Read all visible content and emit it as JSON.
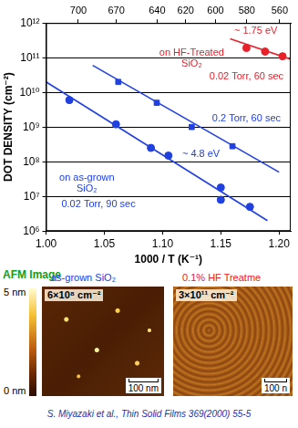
{
  "chart_data": {
    "type": "scatter",
    "x_label": "1000 / T (K⁻¹)",
    "y_label": "DOT DENSITY (cm⁻²)",
    "xlim": [
      1.0,
      1.21
    ],
    "xticks": [
      {
        "value": 1.0,
        "label": "1.00"
      },
      {
        "value": 1.05,
        "label": "1.05"
      },
      {
        "value": 1.1,
        "label": "1.10"
      },
      {
        "value": 1.15,
        "label": "1.15"
      },
      {
        "value": 1.2,
        "label": "1.20"
      }
    ],
    "x2lim": [
      1.0,
      1.21
    ],
    "x2ticks": [
      {
        "value": 1.0277,
        "label": "700"
      },
      {
        "value": 1.0603,
        "label": "670"
      },
      {
        "value": 1.0953,
        "label": "640"
      },
      {
        "value": 1.1198,
        "label": "620"
      },
      {
        "value": 1.1455,
        "label": "600"
      },
      {
        "value": 1.1723,
        "label": "580"
      },
      {
        "value": 1.2005,
        "label": "560"
      }
    ],
    "ylim": [
      1000000,
      1000000000000
    ],
    "yticks": [
      {
        "value": 1000000,
        "label": "10⁶"
      },
      {
        "value": 10000000,
        "label": "10⁷"
      },
      {
        "value": 100000000,
        "label": "10⁸"
      },
      {
        "value": 1000000000,
        "label": "10⁹"
      },
      {
        "value": 10000000000,
        "label": "10¹⁰"
      },
      {
        "value": 100000000000,
        "label": "10¹¹"
      },
      {
        "value": 1000000000000,
        "label": "10¹²"
      }
    ],
    "log": "y",
    "grid": "y",
    "series": [
      {
        "type": "scatter",
        "color": "#2040e0",
        "marker": "circle",
        "x": [
          1.02,
          1.06,
          1.09,
          1.105,
          1.15,
          1.15,
          1.175
        ],
        "values": [
          6000000000,
          1200000000,
          250000000,
          150000000,
          18000000,
          8000000,
          5000000
        ]
      },
      {
        "type": "scatter",
        "color": "#2040e0",
        "marker": "square",
        "x": [
          1.062,
          1.095,
          1.125,
          1.16
        ],
        "values": [
          20000000000,
          5000000000,
          1000000000,
          280000000
        ]
      },
      {
        "type": "scatter",
        "color": "#e8202a",
        "marker": "circle",
        "x": [
          1.172,
          1.188,
          1.203
        ],
        "values": [
          190000000000,
          150000000000,
          110000000000
        ]
      },
      {
        "type": "line",
        "color": "#2040e0",
        "marker": "none",
        "line_style": "solid",
        "x": [
          1.0,
          1.19
        ],
        "values": [
          20000000000,
          2000000
        ]
      },
      {
        "type": "line",
        "color": "#2040e0",
        "marker": "none",
        "line_style": "solid",
        "x": [
          1.04,
          1.2
        ],
        "values": [
          60000000000,
          50000000
        ]
      },
      {
        "type": "line",
        "color": "#e8202a",
        "marker": "none",
        "line_style": "solid",
        "x": [
          1.158,
          1.21
        ],
        "values": [
          350000000000,
          90000000000
        ]
      }
    ],
    "annotations": [
      {
        "text": "~ 1.75 eV",
        "x": 1.18,
        "y": 600000000000,
        "color": "#e8202a"
      },
      {
        "text": "on HF-Treated",
        "x": 1.125,
        "y": 140000000000,
        "color": "#e8202a"
      },
      {
        "text": "SiO₂",
        "x": 1.125,
        "y": 65000000000,
        "color": "#e8202a"
      },
      {
        "text": "0.02 Torr, 60 sec",
        "x": 1.172,
        "y": 28000000000,
        "color": "#e8202a"
      },
      {
        "text": "0.2 Torr, 60 sec",
        "x": 1.172,
        "y": 1700000000,
        "color": "#2040e0"
      },
      {
        "text": "~ 4.8 eV",
        "x": 1.133,
        "y": 165000000,
        "color": "#2040e0"
      },
      {
        "text": "on as-grown",
        "x": 1.035,
        "y": 35000000,
        "color": "#2040e0"
      },
      {
        "text": "SiO₂",
        "x": 1.035,
        "y": 16000000,
        "color": "#2040e0"
      },
      {
        "text": "0.02 Torr, 90 sec",
        "x": 1.045,
        "y": 6000000,
        "color": "#2040e0"
      }
    ]
  },
  "afm": {
    "title": "AFM Image",
    "title_color": "#10a020",
    "colorbar": {
      "top": "5 nm",
      "bottom": "0 nm"
    },
    "panels": [
      {
        "title": "as-grown SiO₂",
        "color": "#2040e0",
        "density": "6×10⁸ cm⁻²",
        "scale_bar": "100 nm"
      },
      {
        "title": "0.1% HF Treatme",
        "color": "#e8202a",
        "density": "3×10¹¹ cm⁻²",
        "scale_bar": "100 n"
      }
    ]
  },
  "citation": "S. Miyazaki et al., Thin Solid Films 369(2000) 55-5"
}
